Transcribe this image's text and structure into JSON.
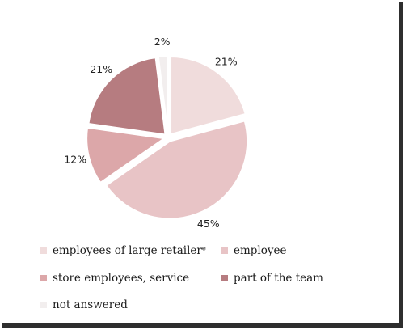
{
  "chart_data": {
    "type": "pie",
    "title": "",
    "legend_position": "bottom",
    "slices": [
      {
        "label": "employees of large retailers",
        "legend_text": "employees of large retailerᵉ",
        "value": 21,
        "display": "21%",
        "color": "#f0dcdc"
      },
      {
        "label": "employee",
        "legend_text": "employee",
        "value": 45,
        "display": "45%",
        "color": "#e8c4c6"
      },
      {
        "label": "store employees, service",
        "legend_text": "store employees, service",
        "value": 12,
        "display": "12%",
        "color": "#dca7a9"
      },
      {
        "label": "part of the team",
        "legend_text": "part of the team",
        "value": 21,
        "display": "21%",
        "color": "#b67c80"
      },
      {
        "label": "not answered",
        "legend_text": "not answered",
        "value": 2,
        "display": "2%",
        "color": "#f2eeee"
      }
    ]
  }
}
